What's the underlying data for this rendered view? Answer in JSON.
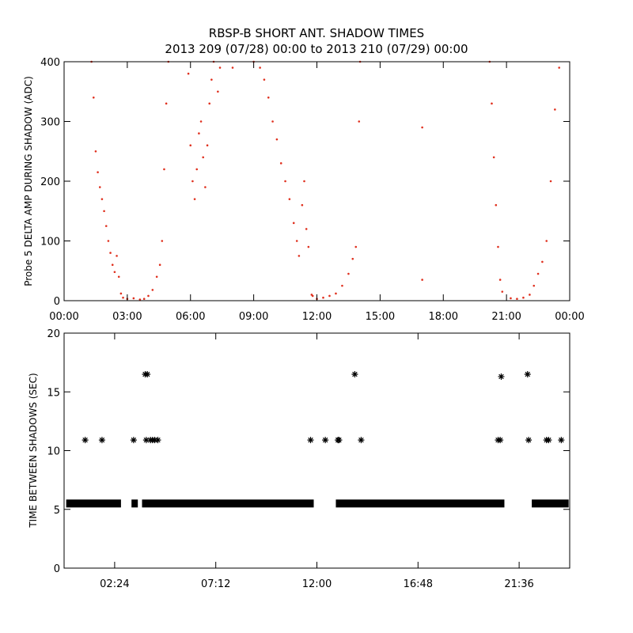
{
  "title": {
    "line1": "RBSP-B SHORT ANT. SHADOW TIMES",
    "line2": "2013 209 (07/28) 00:00 to 2013 210 (07/29) 00:00"
  },
  "colors": {
    "amplitude_points": "#e0301e",
    "interval_markers": "#000000",
    "axes": "#000000",
    "background": "#ffffff"
  },
  "chart_data": [
    {
      "type": "scatter",
      "name": "amplitude-panel",
      "ylabel": "Probe 5 DELTA AMP DURING SHADOW (ADC)",
      "xlabel": "",
      "xlim": [
        0,
        24
      ],
      "ylim": [
        0,
        400
      ],
      "x_ticks": [
        0,
        3,
        6,
        9,
        12,
        15,
        18,
        21,
        24
      ],
      "x_tick_labels": [
        "00:00",
        "03:00",
        "06:00",
        "09:00",
        "12:00",
        "15:00",
        "18:00",
        "21:00",
        "00:00"
      ],
      "y_ticks": [
        0,
        100,
        200,
        300,
        400
      ],
      "y_tick_labels": [
        "0",
        "100",
        "200",
        "300",
        "400"
      ],
      "x_units": "hours of day",
      "marker": "dot",
      "series": [
        {
          "color": "#e0301e",
          "points": [
            [
              1.3,
              400
            ],
            [
              1.4,
              340
            ],
            [
              1.5,
              250
            ],
            [
              1.6,
              215
            ],
            [
              1.7,
              190
            ],
            [
              1.8,
              170
            ],
            [
              1.9,
              150
            ],
            [
              2.0,
              125
            ],
            [
              2.1,
              100
            ],
            [
              2.2,
              80
            ],
            [
              2.3,
              60
            ],
            [
              2.4,
              48
            ],
            [
              2.5,
              75
            ],
            [
              2.6,
              40
            ],
            [
              2.7,
              12
            ],
            [
              2.8,
              5
            ],
            [
              3.0,
              3
            ],
            [
              3.3,
              4
            ],
            [
              3.6,
              2
            ],
            [
              3.8,
              3
            ],
            [
              4.0,
              8
            ],
            [
              4.2,
              18
            ],
            [
              4.4,
              40
            ],
            [
              4.55,
              60
            ],
            [
              4.65,
              100
            ],
            [
              4.75,
              220
            ],
            [
              4.85,
              330
            ],
            [
              4.95,
              400
            ],
            [
              5.9,
              380
            ],
            [
              6.0,
              260
            ],
            [
              6.1,
              200
            ],
            [
              6.2,
              170
            ],
            [
              6.3,
              220
            ],
            [
              6.4,
              280
            ],
            [
              6.5,
              300
            ],
            [
              6.6,
              240
            ],
            [
              6.7,
              190
            ],
            [
              6.8,
              260
            ],
            [
              6.9,
              330
            ],
            [
              7.0,
              370
            ],
            [
              7.1,
              400
            ],
            [
              7.3,
              350
            ],
            [
              7.4,
              390
            ],
            [
              8.0,
              390
            ],
            [
              9.0,
              400
            ],
            [
              9.3,
              390
            ],
            [
              9.5,
              370
            ],
            [
              9.7,
              340
            ],
            [
              9.9,
              300
            ],
            [
              10.1,
              270
            ],
            [
              10.3,
              230
            ],
            [
              10.5,
              200
            ],
            [
              10.7,
              170
            ],
            [
              10.9,
              130
            ],
            [
              11.05,
              100
            ],
            [
              11.15,
              75
            ],
            [
              11.3,
              160
            ],
            [
              11.4,
              200
            ],
            [
              11.5,
              120
            ],
            [
              11.6,
              90
            ],
            [
              11.75,
              10
            ],
            [
              11.8,
              8
            ],
            [
              12.0,
              3
            ],
            [
              12.3,
              5
            ],
            [
              12.6,
              8
            ],
            [
              12.9,
              12
            ],
            [
              13.2,
              25
            ],
            [
              13.5,
              45
            ],
            [
              13.7,
              70
            ],
            [
              13.85,
              90
            ],
            [
              14.0,
              300
            ],
            [
              14.05,
              400
            ],
            [
              17.0,
              290
            ],
            [
              17.0,
              35
            ],
            [
              20.2,
              400
            ],
            [
              20.3,
              330
            ],
            [
              20.4,
              240
            ],
            [
              20.5,
              160
            ],
            [
              20.6,
              90
            ],
            [
              20.7,
              35
            ],
            [
              20.8,
              15
            ],
            [
              21.2,
              4
            ],
            [
              21.5,
              3
            ],
            [
              21.8,
              5
            ],
            [
              22.1,
              10
            ],
            [
              22.3,
              25
            ],
            [
              22.5,
              45
            ],
            [
              22.7,
              65
            ],
            [
              22.9,
              100
            ],
            [
              23.1,
              200
            ],
            [
              23.3,
              320
            ],
            [
              23.5,
              390
            ]
          ]
        }
      ]
    },
    {
      "type": "scatter",
      "name": "interval-panel",
      "ylabel": "TIME BETWEEN SHADOWS (SEC)",
      "xlabel": "",
      "xlim": [
        0,
        24
      ],
      "ylim": [
        0,
        20
      ],
      "x_ticks": [
        2.4,
        7.2,
        12.0,
        16.8,
        21.6
      ],
      "x_tick_labels": [
        "02:24",
        "07:12",
        "12:00",
        "16:48",
        "21:36"
      ],
      "y_ticks": [
        0,
        5,
        10,
        15,
        20
      ],
      "y_tick_labels": [
        "0",
        "5",
        "10",
        "15",
        "20"
      ],
      "x_units": "hours of day",
      "marker": "asterisk",
      "baseline": {
        "y": 5.5,
        "segments": [
          [
            0.1,
            2.7
          ],
          [
            3.2,
            3.5
          ],
          [
            3.7,
            11.85
          ],
          [
            12.9,
            20.9
          ],
          [
            22.2,
            23.95
          ]
        ]
      },
      "series": [
        {
          "color": "#000000",
          "points": [
            [
              1.0,
              10.9
            ],
            [
              1.8,
              10.9
            ],
            [
              3.3,
              10.9
            ],
            [
              3.85,
              16.5
            ],
            [
              3.95,
              16.5
            ],
            [
              3.9,
              10.9
            ],
            [
              4.1,
              10.9
            ],
            [
              4.2,
              10.9
            ],
            [
              4.3,
              10.9
            ],
            [
              4.45,
              10.9
            ],
            [
              11.7,
              10.9
            ],
            [
              12.4,
              10.9
            ],
            [
              13.0,
              10.9
            ],
            [
              13.05,
              10.9
            ],
            [
              13.8,
              16.5
            ],
            [
              14.1,
              10.9
            ],
            [
              20.6,
              10.9
            ],
            [
              20.7,
              10.9
            ],
            [
              20.75,
              16.3
            ],
            [
              22.0,
              16.5
            ],
            [
              22.05,
              10.9
            ],
            [
              22.9,
              10.9
            ],
            [
              23.0,
              10.9
            ],
            [
              23.6,
              10.9
            ]
          ]
        }
      ]
    }
  ]
}
